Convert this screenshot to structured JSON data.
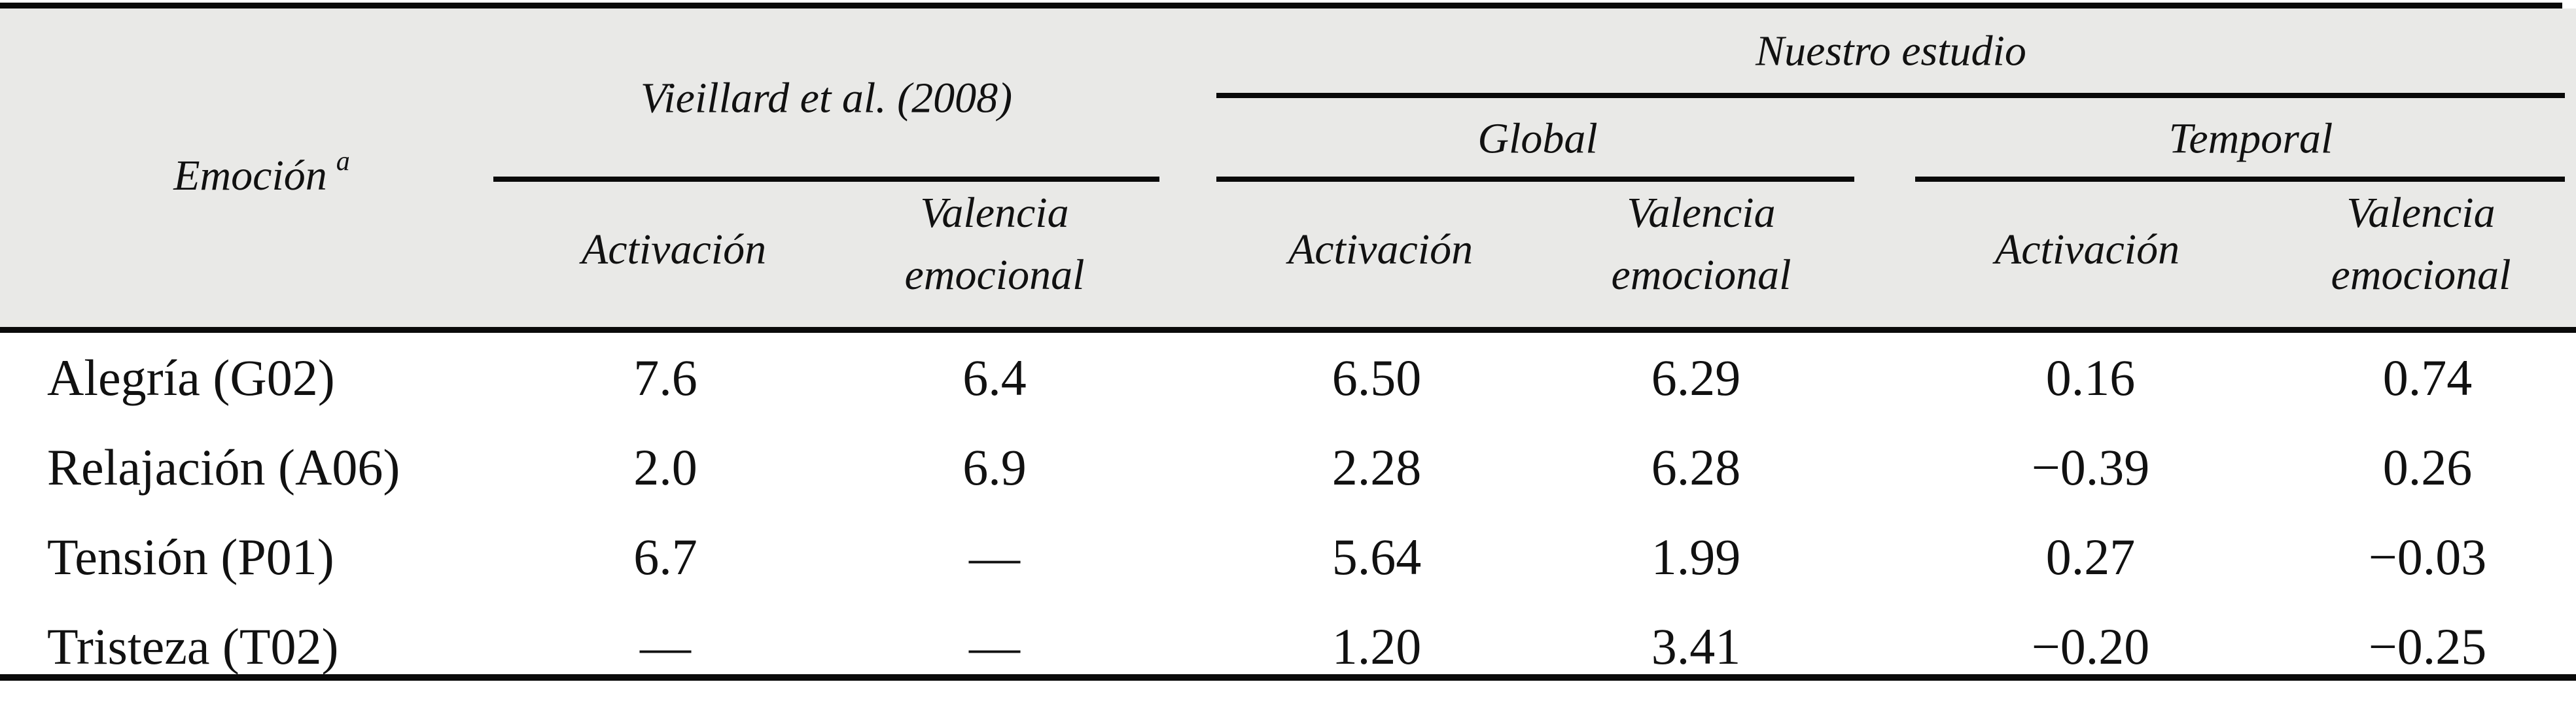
{
  "page": {
    "background": "#ffffff",
    "header_background": "#e9e9e7",
    "rule_color": "#0a0a0a",
    "text_color": "#111111"
  },
  "table": {
    "header": {
      "emotion": "Emoción",
      "emotion_footnote": "a",
      "vieillard": "Vieillard et al. (2008)",
      "our_study": "Nuestro estudio",
      "global": "Global",
      "temporal": "Temporal",
      "activation": "Activación",
      "valence_line1": "Valencia",
      "valence_line2": "emocional"
    },
    "rows": [
      {
        "emotion": "Alegría (G02)",
        "values": [
          "7.6",
          "6.4",
          "6.50",
          "6.29",
          "0.16",
          "0.74"
        ]
      },
      {
        "emotion": "Relajación (A06)",
        "values": [
          "2.0",
          "6.9",
          "2.28",
          "6.28",
          "−0.39",
          "0.26"
        ]
      },
      {
        "emotion": "Tensión (P01)",
        "values": [
          "6.7",
          "—",
          "5.64",
          "1.99",
          "0.27",
          "−0.03"
        ]
      },
      {
        "emotion": "Tristeza (T02)",
        "values": [
          "—",
          "—",
          "1.20",
          "3.41",
          "−0.20",
          "−0.25"
        ]
      }
    ]
  },
  "chart_data": {
    "type": "table",
    "title": "",
    "columns": [
      "Emoción",
      "Vieillard et al. (2008) – Activación",
      "Vieillard et al. (2008) – Valencia emocional",
      "Nuestro estudio Global – Activación",
      "Nuestro estudio Global – Valencia emocional",
      "Nuestro estudio Temporal – Activación",
      "Nuestro estudio Temporal – Valencia emocional"
    ],
    "rows": [
      [
        "Alegría (G02)",
        7.6,
        6.4,
        6.5,
        6.29,
        0.16,
        0.74
      ],
      [
        "Relajación (A06)",
        2.0,
        6.9,
        2.28,
        6.28,
        -0.39,
        0.26
      ],
      [
        "Tensión (P01)",
        6.7,
        null,
        5.64,
        1.99,
        0.27,
        -0.03
      ],
      [
        "Tristeza (T02)",
        null,
        null,
        1.2,
        3.41,
        -0.2,
        -0.25
      ]
    ]
  }
}
